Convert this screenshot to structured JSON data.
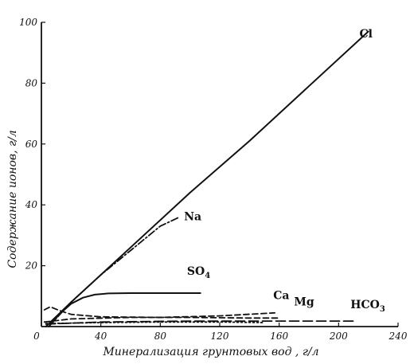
{
  "chart_data": {
    "type": "line",
    "xlabel": "Минерализация грунтовых вод , г/л",
    "ylabel": "Содержание ионов, г/л",
    "xlim": [
      0,
      240
    ],
    "ylim": [
      0,
      100
    ],
    "x_ticks": [
      "0",
      "40",
      "80",
      "120",
      "160",
      "200",
      "240"
    ],
    "y_ticks": [
      "20",
      "40",
      "60",
      "80",
      "100"
    ],
    "grid": false,
    "series": [
      {
        "name": "Cl",
        "label_text": "Cl",
        "style": "solid",
        "x": [
          3,
          20,
          60,
          100,
          140,
          180,
          220
        ],
        "y": [
          0,
          8,
          26,
          44,
          61,
          79,
          97
        ]
      },
      {
        "name": "Na",
        "label_text": "Na",
        "style": "dashdot",
        "x": [
          5,
          20,
          40,
          60,
          80,
          93
        ],
        "y": [
          0,
          8,
          17,
          25,
          33,
          36
        ]
      },
      {
        "name": "SO4",
        "label_text": "SO",
        "label_sub": "4",
        "style": "solid",
        "x": [
          5,
          12,
          20,
          28,
          36,
          45,
          60,
          80,
          100,
          107
        ],
        "y": [
          0,
          4,
          7.5,
          9.5,
          10.5,
          10.9,
          11,
          11,
          11,
          11
        ]
      },
      {
        "name": "Ca",
        "label_text": "Ca",
        "style": "dashed",
        "x": [
          2,
          6,
          12,
          20,
          40,
          80,
          120,
          157
        ],
        "y": [
          5.5,
          6.5,
          5.3,
          4,
          3.2,
          3,
          3.5,
          4.5
        ]
      },
      {
        "name": "Mg",
        "label_text": "Mg",
        "style": "dashed",
        "x": [
          2,
          20,
          60,
          100,
          140,
          160
        ],
        "y": [
          1.5,
          2.5,
          3,
          3,
          2.8,
          2.8
        ]
      },
      {
        "name": "HCO3",
        "label_text": "HCO",
        "label_sub": "3",
        "style": "longdash",
        "x": [
          3,
          40,
          100,
          160,
          210
        ],
        "y": [
          0.8,
          1.5,
          1.8,
          1.8,
          1.8
        ]
      },
      {
        "name": "",
        "label_text": "",
        "style": "dotted",
        "x": [
          3,
          40,
          80,
          120,
          150
        ],
        "y": [
          1,
          1.3,
          1.5,
          1.5,
          1.3
        ]
      }
    ],
    "label_anchors": [
      {
        "series": "Cl",
        "x": 214,
        "y": 95
      },
      {
        "series": "Na",
        "x": 96,
        "y": 35
      },
      {
        "series": "SO4",
        "x": 98,
        "y": 17
      },
      {
        "series": "Ca",
        "x": 156,
        "y": 9
      },
      {
        "series": "Mg",
        "x": 170,
        "y": 7
      },
      {
        "series": "HCO3",
        "x": 208,
        "y": 6
      }
    ]
  }
}
